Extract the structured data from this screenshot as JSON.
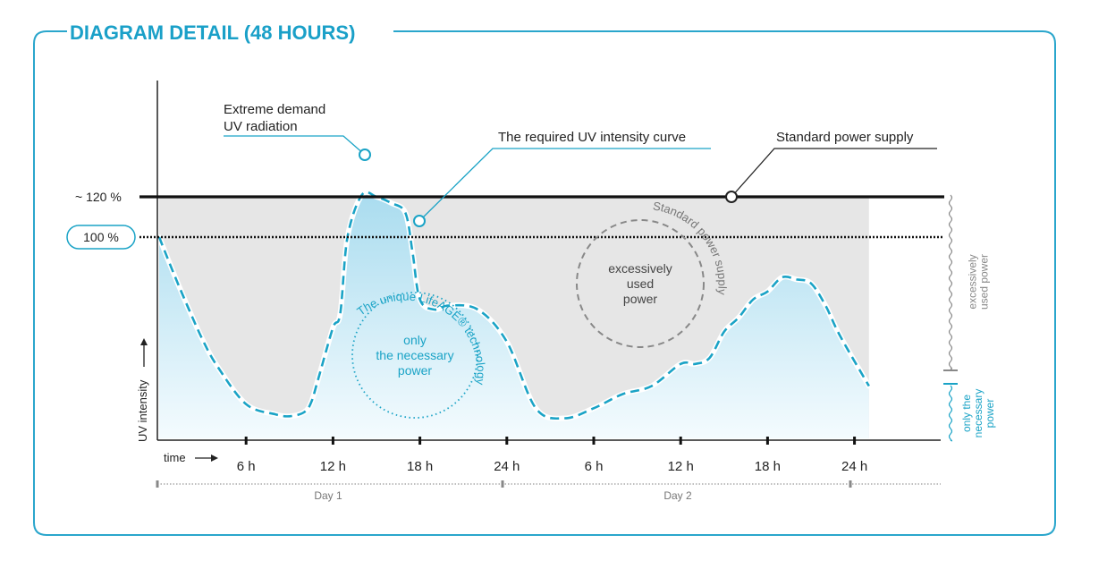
{
  "frame": {
    "title": "DIAGRAM DETAIL (48 HOURS)"
  },
  "colors": {
    "accent": "#1aa3c6",
    "frame": "#2aa6cc",
    "title": "#1aa0c8",
    "grey_fill": "#e6e6e6",
    "axis": "#222222",
    "dashed_circle_grey": "#888888"
  },
  "chart_data": {
    "type": "line",
    "title": "",
    "ylabel": "UV intensity",
    "xlabel": "time",
    "x_ticks": [
      "6 h",
      "12 h",
      "18 h",
      "24 h",
      "6 h",
      "12 h",
      "18 h",
      "24 h"
    ],
    "days": [
      "Day 1",
      "Day 2"
    ],
    "y_reference_labels": [
      "~ 120 %",
      "100 %"
    ],
    "reference_levels": {
      "standard_supply_pct": 120,
      "hundred_pct": 100
    },
    "series": [
      {
        "name": "The required UV intensity curve",
        "x": [
          0,
          1,
          2,
          3,
          4,
          6,
          8,
          9,
          10,
          10.5,
          11,
          12,
          12.5,
          13,
          14,
          15,
          16,
          17,
          17.5,
          18,
          19,
          20,
          22,
          24,
          26,
          28,
          30,
          32,
          34,
          36,
          37,
          38,
          39,
          40,
          41,
          42,
          43,
          44,
          45,
          46,
          47,
          49
        ],
        "y": [
          100,
          82,
          65,
          49,
          36,
          17,
          12,
          11,
          13,
          18,
          30,
          55,
          62,
          100,
          121,
          120,
          117,
          112,
          92,
          69,
          64,
          66,
          64,
          48,
          15,
          10,
          15,
          22,
          26,
          37,
          37,
          40,
          53,
          60,
          69,
          73,
          80,
          79,
          77,
          66,
          51,
          26
        ]
      }
    ],
    "annotations": [
      "Extreme demand UV radiation",
      "The required UV intensity curve",
      "Standard power supply"
    ],
    "right_bracket_labels": [
      "excessively used power",
      "only the necessary power"
    ],
    "circle_labels": {
      "left_inner": "only the necessary power",
      "left_arc": "The unique LifeAGE® technology",
      "right_inner": "excessively used power",
      "right_arc": "Standard power supply"
    },
    "grid": false
  }
}
